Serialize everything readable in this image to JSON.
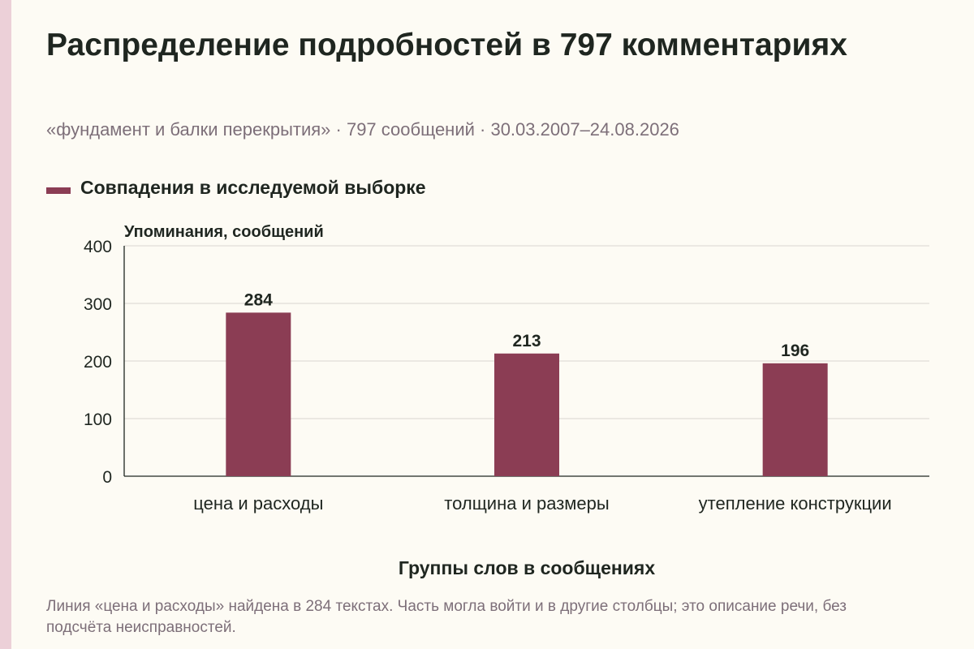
{
  "title": "Распределение подробностей в 797 комментариях",
  "subtitle": "«фундамент и балки перекрытия» · 797 сообщений · 30.03.2007–24.08.2026",
  "note": "Линия «цена и расходы» найдена в 284 текстах. Часть могла войти и в другие столбцы; это описание речи, без подсчёта неисправностей.",
  "colors": {
    "bar": "#8b3d54",
    "background": "#fdfbf4",
    "accent_strip": "#ecd0d8",
    "grid": "#d9d6cf"
  },
  "chart_data": {
    "type": "bar",
    "categories": [
      "цена и расходы",
      "толщина и размеры",
      "утепление конструкции"
    ],
    "series": [
      {
        "name": "Совпадения в исследуемой выборке",
        "values": [
          284,
          213,
          196
        ]
      }
    ],
    "xlabel": "Группы слов в сообщениях",
    "ylabel": "Упоминания, сообщений",
    "ylim": [
      0,
      400
    ],
    "yticks": [
      "0",
      "100",
      "200",
      "300",
      "400"
    ],
    "data_labels": [
      "284",
      "213",
      "196"
    ],
    "grid": true,
    "legend_position": "top-left"
  }
}
